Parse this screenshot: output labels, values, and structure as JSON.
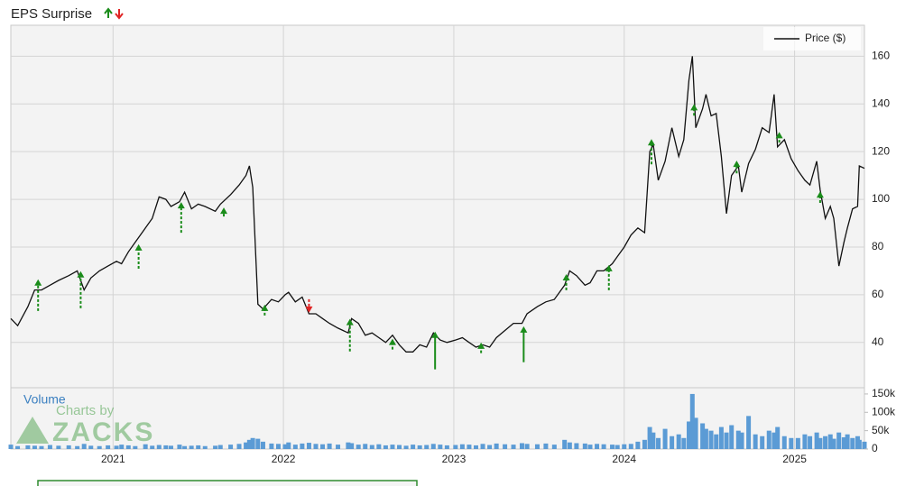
{
  "chart_data": {
    "type": "line",
    "title": "EPS Surprise",
    "legend_label": "Price ($)",
    "volume_label": "Volume",
    "watermark": [
      "Charts by",
      "ZACKS"
    ],
    "x": [
      2020.4,
      2020.44,
      2020.5,
      2020.54,
      2020.58,
      2020.63,
      2020.68,
      2020.74,
      2020.79,
      2020.83,
      2020.87,
      2020.92,
      2020.97,
      2021.02,
      2021.05,
      2021.09,
      2021.13,
      2021.19,
      2021.23,
      2021.27,
      2021.31,
      2021.34,
      2021.39,
      2021.42,
      2021.46,
      2021.5,
      2021.54,
      2021.6,
      2021.63,
      2021.69,
      2021.74,
      2021.78,
      2021.8,
      2021.82,
      2021.85,
      2021.88,
      2021.93,
      2021.97,
      2022.01,
      2022.03,
      2022.07,
      2022.11,
      2022.15,
      2022.19,
      2022.23,
      2022.27,
      2022.32,
      2022.38,
      2022.4,
      2022.44,
      2022.48,
      2022.52,
      2022.56,
      2022.6,
      2022.64,
      2022.68,
      2022.72,
      2022.76,
      2022.8,
      2022.84,
      2022.88,
      2022.92,
      2022.96,
      2023.01,
      2023.05,
      2023.09,
      2023.13,
      2023.17,
      2023.21,
      2023.25,
      2023.3,
      2023.35,
      2023.4,
      2023.43,
      2023.49,
      2023.54,
      2023.59,
      2023.65,
      2023.68,
      2023.72,
      2023.77,
      2023.8,
      2023.84,
      2023.88,
      2023.93,
      2023.96,
      2024.0,
      2024.04,
      2024.08,
      2024.12,
      2024.15,
      2024.17,
      2024.2,
      2024.24,
      2024.28,
      2024.32,
      2024.35,
      2024.38,
      2024.4,
      2024.42,
      2024.46,
      2024.48,
      2024.51,
      2024.54,
      2024.57,
      2024.6,
      2024.63,
      2024.67,
      2024.69,
      2024.73,
      2024.77,
      2024.81,
      2024.85,
      2024.88,
      2024.9,
      2024.94,
      2024.98,
      2025.02,
      2025.06,
      2025.09,
      2025.13,
      2025.15,
      2025.18,
      2025.21,
      2025.23,
      2025.26,
      2025.29,
      2025.31,
      2025.34,
      2025.37,
      2025.38,
      2025.41
    ],
    "series": [
      {
        "name": "Price ($)",
        "color": "#111111",
        "values": [
          50,
          47,
          55,
          62,
          62,
          64,
          66,
          68,
          70,
          62,
          67,
          70,
          72,
          74,
          73,
          78,
          82,
          88,
          92,
          101,
          100,
          97,
          99,
          103,
          96,
          98,
          97,
          95,
          98,
          102,
          106,
          110,
          114,
          105,
          56,
          54,
          58,
          57,
          60,
          61,
          57,
          59,
          52,
          52,
          50,
          48,
          46,
          44,
          50,
          48,
          43,
          44,
          42,
          40,
          43,
          39,
          36,
          36,
          39,
          38,
          44,
          41,
          40,
          41,
          42,
          40,
          38,
          39,
          38,
          42,
          45,
          48,
          48,
          52,
          55,
          57,
          58,
          64,
          70,
          68,
          64,
          65,
          70,
          70,
          73,
          76,
          80,
          85,
          88,
          86,
          120,
          123,
          108,
          116,
          130,
          118,
          125,
          150,
          160,
          130,
          138,
          144,
          135,
          136,
          118,
          94,
          110,
          114,
          103,
          115,
          121,
          130,
          128,
          144,
          122,
          125,
          117,
          112,
          108,
          106,
          116,
          104,
          92,
          97,
          92,
          72,
          82,
          88,
          96,
          97,
          114,
          113
        ]
      },
      {
        "name": "Volume",
        "color": "#5b9bd5",
        "axis": "y2",
        "values": [
          12000,
          8000,
          10000,
          9000,
          8000,
          11000,
          9000,
          10000,
          8000,
          14000,
          9000,
          8000,
          10000,
          9000,
          12000,
          10000,
          8000,
          13000,
          9000,
          11000,
          10000,
          9000,
          12000,
          8000,
          9000,
          10000,
          8000,
          9000,
          11000,
          12000,
          14000,
          18000,
          25000,
          30000,
          28000,
          20000,
          15000,
          14000,
          13000,
          18000,
          12000,
          15000,
          17000,
          14000,
          13000,
          15000,
          12000,
          18000,
          16000,
          12000,
          14000,
          11000,
          13000,
          10000,
          12000,
          11000,
          9000,
          12000,
          10000,
          11000,
          14000,
          12000,
          10000,
          11000,
          13000,
          12000,
          10000,
          14000,
          11000,
          15000,
          13000,
          12000,
          16000,
          14000,
          13000,
          15000,
          12000,
          25000,
          18000,
          16000,
          15000,
          12000,
          14000,
          13000,
          12000,
          11000,
          13000,
          14000,
          20000,
          25000,
          60000,
          45000,
          30000,
          55000,
          35000,
          40000,
          30000,
          75000,
          150000,
          85000,
          70000,
          55000,
          50000,
          40000,
          60000,
          45000,
          65000,
          50000,
          45000,
          90000,
          40000,
          35000,
          50000,
          45000,
          60000,
          35000,
          30000,
          30000,
          40000,
          35000,
          45000,
          30000,
          35000,
          40000,
          28000,
          45000,
          32000,
          40000,
          30000,
          35000,
          25000,
          20000
        ]
      }
    ],
    "eps_surprises": {
      "x": [
        2020.56,
        2020.81,
        2021.15,
        2021.4,
        2021.65,
        2021.89,
        2022.15,
        2022.39,
        2022.64,
        2022.89,
        2023.16,
        2023.41,
        2023.66,
        2023.91,
        2024.16,
        2024.41,
        2024.66,
        2024.91,
        2025.15
      ],
      "from": [
        53.2,
        54.3,
        70.9,
        86.0,
        92.8,
        51.3,
        58.1,
        36.2,
        37.0,
        28.7,
        35.5,
        31.7,
        61.9,
        61.9,
        114.7,
        135.1,
        110.9,
        123.8,
        98.5
      ],
      "to": [
        65.7,
        69.1,
        80.4,
        98.1,
        95.8,
        55.1,
        53.2,
        49.1,
        40.8,
        43.8,
        39.2,
        46.0,
        67.9,
        71.7,
        124.5,
        139.2,
        115.5,
        127.5,
        102.6
      ],
      "direction": [
        "up",
        "up",
        "up",
        "up",
        "up",
        "up",
        "down",
        "up",
        "up",
        "up",
        "up",
        "up",
        "up",
        "up",
        "up",
        "up",
        "up",
        "up",
        "up"
      ],
      "style": [
        "dashed",
        "dashed",
        "dashed",
        "dashed",
        "dashed",
        "dashed",
        "dashed",
        "dashed",
        "dashed",
        "solid",
        "dashed",
        "solid",
        "dashed",
        "dashed",
        "dashed",
        "dashed",
        "dashed",
        "dashed",
        "dashed"
      ],
      "up_color": "#1a8c1a",
      "down_color": "#e02424"
    },
    "xlim": [
      2020.4,
      2025.41
    ],
    "xticks": [
      2021,
      2022,
      2023,
      2024,
      2025
    ],
    "ylim": [
      21,
      173
    ],
    "yticks": [
      40,
      60,
      80,
      100,
      120,
      140,
      160
    ],
    "y2lim": [
      0,
      167000
    ],
    "y2ticks": [
      0,
      {
        "value": 50000,
        "label": "50k"
      },
      {
        "value": 100000,
        "label": "100k"
      },
      {
        "value": 150000,
        "label": "150k"
      }
    ],
    "grid": true,
    "legend": "upper right"
  }
}
